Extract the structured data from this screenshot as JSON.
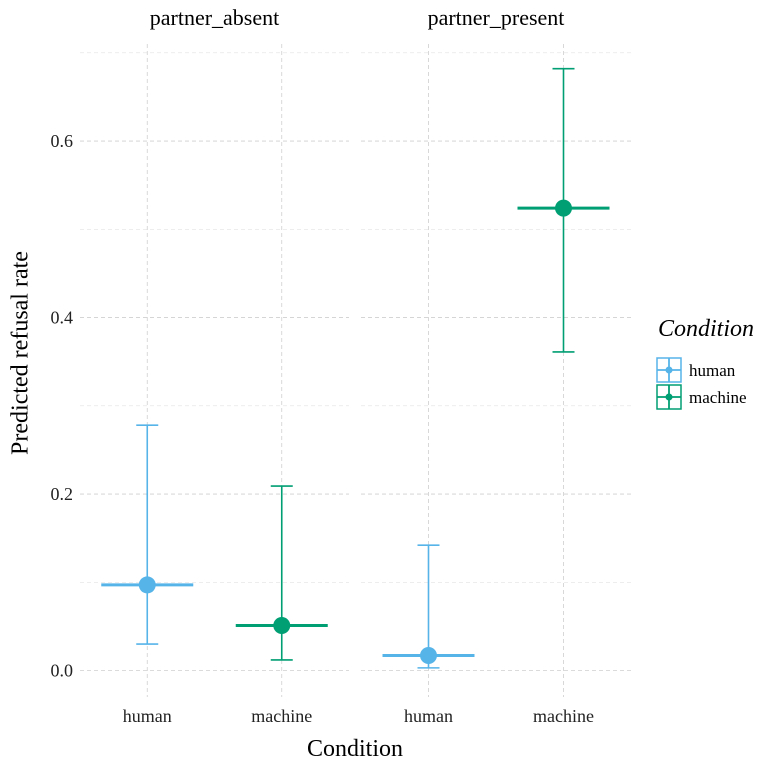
{
  "chart_data": {
    "type": "scatter",
    "subtype": "point-range with error bars, faceted",
    "xlabel": "Condition",
    "ylabel": "Predicted refusal rate",
    "ylim": [
      -0.03,
      0.71
    ],
    "y_ticks": [
      0.0,
      0.2,
      0.4,
      0.6
    ],
    "y_tick_labels": [
      "0.0",
      "0.2",
      "0.4",
      "0.6"
    ],
    "categories": [
      "human",
      "machine"
    ],
    "grid": true,
    "facets": [
      {
        "label": "partner_absent",
        "points": [
          {
            "condition": "human",
            "estimate": 0.097,
            "lower": 0.03,
            "upper": 0.278
          },
          {
            "condition": "machine",
            "estimate": 0.051,
            "lower": 0.012,
            "upper": 0.209
          }
        ]
      },
      {
        "label": "partner_present",
        "points": [
          {
            "condition": "human",
            "estimate": 0.017,
            "lower": 0.003,
            "upper": 0.142
          },
          {
            "condition": "machine",
            "estimate": 0.524,
            "lower": 0.361,
            "upper": 0.682
          }
        ]
      }
    ],
    "legend": {
      "title": "Condition",
      "position": "right",
      "entries": [
        {
          "label": "human",
          "color": "#56B4E9"
        },
        {
          "label": "machine",
          "color": "#009E73"
        }
      ]
    }
  }
}
